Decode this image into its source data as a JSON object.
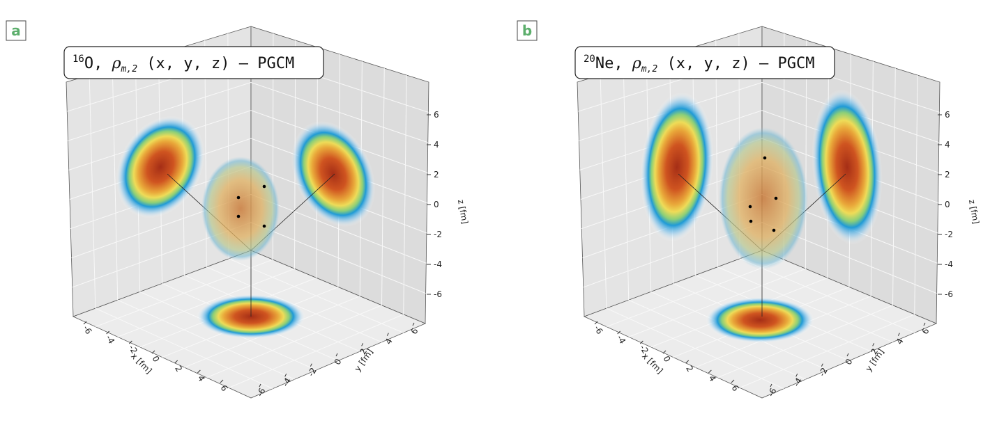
{
  "panels": [
    {
      "label": "a",
      "title": {
        "mass": "16",
        "element": "O, ",
        "rho": "ρ",
        "sub": "m,2",
        "rest": " (x, y, z) – PGCM"
      },
      "x_axis": {
        "label": "x [fm]",
        "ticks": [
          -6,
          -4,
          -2,
          0,
          2,
          4,
          6
        ]
      },
      "y_axis": {
        "label": "y [fm]",
        "ticks": [
          6,
          4,
          2,
          0,
          -2,
          -4,
          -6
        ]
      },
      "z_axis": {
        "label": "z [fm]",
        "ticks": [
          6,
          4,
          2,
          0,
          -2,
          -4,
          -6
        ]
      }
    },
    {
      "label": "b",
      "title": {
        "mass": "20",
        "element": "Ne, ",
        "rho": "ρ",
        "sub": "m,2",
        "rest": " (x, y, z) – PGCM"
      },
      "x_axis": {
        "label": "x [fm]",
        "ticks": [
          -6,
          -4,
          -2,
          0,
          2,
          4,
          6
        ]
      },
      "y_axis": {
        "label": "y [fm]",
        "ticks": [
          6,
          4,
          2,
          0,
          -2,
          -4,
          -6
        ]
      },
      "z_axis": {
        "label": "z [fm]",
        "ticks": [
          6,
          4,
          2,
          0,
          -2,
          -4,
          -6
        ]
      }
    }
  ]
}
